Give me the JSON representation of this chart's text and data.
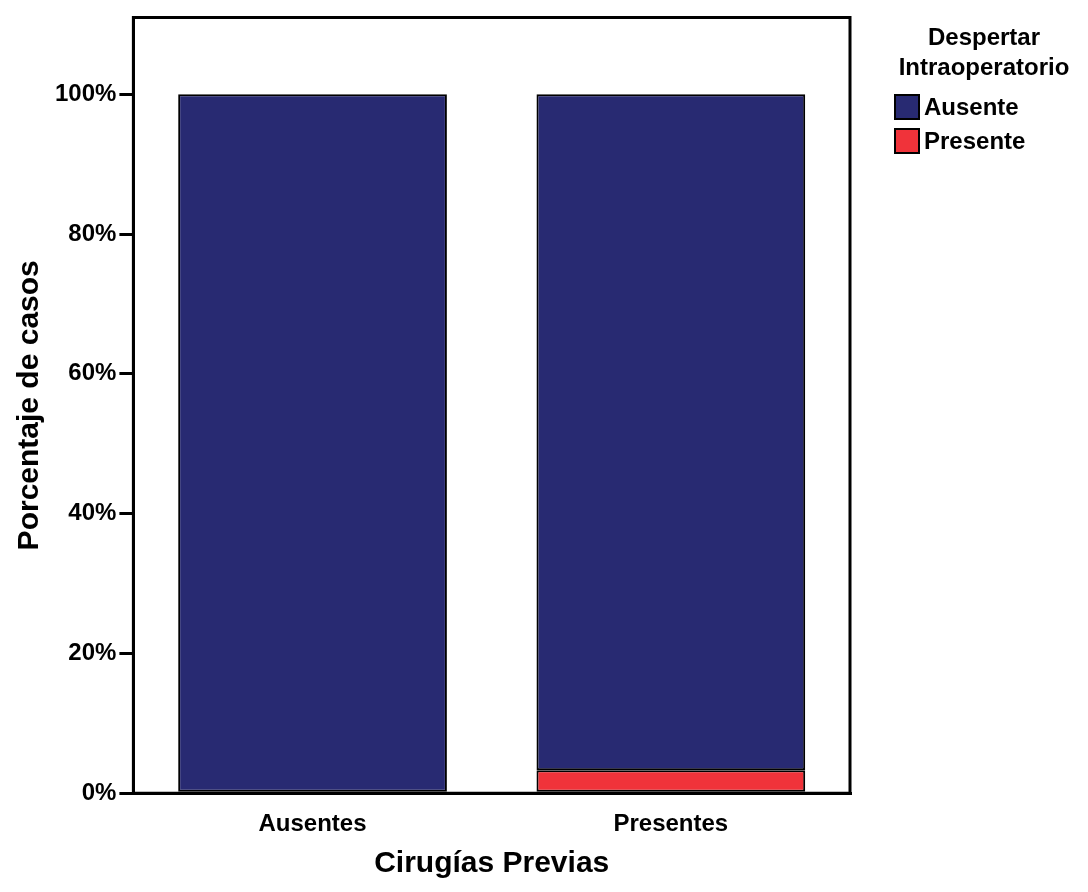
{
  "chart_data": {
    "type": "bar",
    "stacked": true,
    "xlabel": "Cirugías Previas",
    "ylabel": "Porcentaje de casos",
    "legend_title": "Despertar Intraoperatorio",
    "legend": "top right",
    "grid": false,
    "categories": [
      "Ausentes",
      "Presentes"
    ],
    "series": [
      {
        "name": "Presente",
        "color": "#f0333a",
        "values": [
          0,
          3.3
        ]
      },
      {
        "name": "Ausente",
        "color": "#282a72",
        "values": [
          100,
          96.7
        ]
      }
    ],
    "ylim": [
      0,
      111
    ],
    "yticks": [
      {
        "value": 0,
        "label": "0%"
      },
      {
        "value": 20,
        "label": "20%"
      },
      {
        "value": 40,
        "label": "40%"
      },
      {
        "value": 60,
        "label": "60%"
      },
      {
        "value": 80,
        "label": "80%"
      },
      {
        "value": 100,
        "label": "100%"
      }
    ]
  }
}
